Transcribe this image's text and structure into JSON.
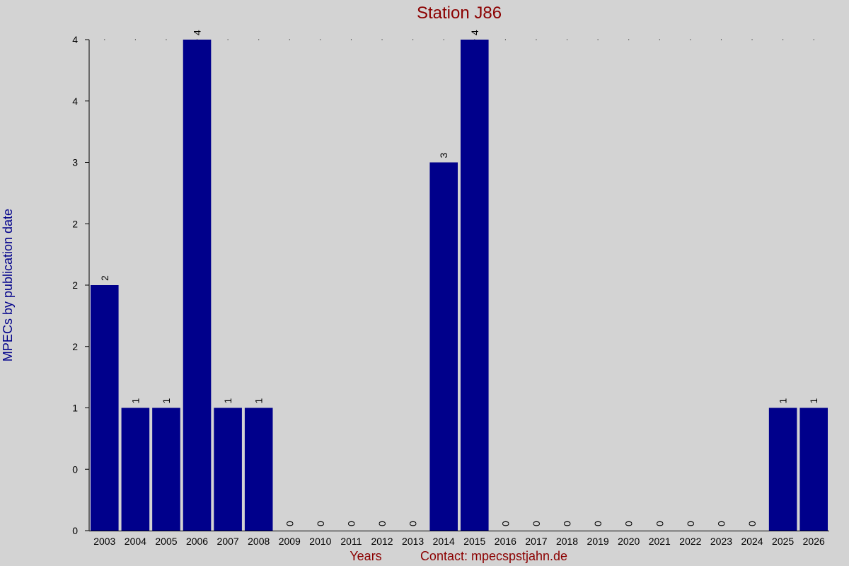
{
  "chart_data": {
    "type": "bar",
    "title": "Station J86",
    "xlabel": "Years",
    "ylabel": "MPECs by publication date",
    "footer": "Contact: mpecspstjahn.de",
    "categories": [
      "2003",
      "2004",
      "2005",
      "2006",
      "2007",
      "2008",
      "2009",
      "2010",
      "2011",
      "2012",
      "2013",
      "2014",
      "2015",
      "2016",
      "2017",
      "2018",
      "2019",
      "2020",
      "2021",
      "2022",
      "2023",
      "2024",
      "2025",
      "2026"
    ],
    "values": [
      2,
      1,
      1,
      4,
      1,
      1,
      0,
      0,
      0,
      0,
      0,
      3,
      4,
      0,
      0,
      0,
      0,
      0,
      0,
      0,
      0,
      0,
      1,
      1
    ],
    "ylim": [
      0,
      4
    ],
    "y_ticks": [
      0,
      0.5,
      1,
      1.5,
      2,
      2.5,
      3,
      3.5,
      4
    ],
    "y_tick_labels": [
      "0",
      "0",
      "1",
      "2",
      "2",
      "2",
      "3",
      "4",
      "4"
    ],
    "grid": false,
    "colors": {
      "bar": "#00008b",
      "title": "#8b0000",
      "ylabel": "#00008b",
      "xlabel": "#8b0000",
      "footer": "#8b0000",
      "background": "#d3d3d3"
    }
  }
}
